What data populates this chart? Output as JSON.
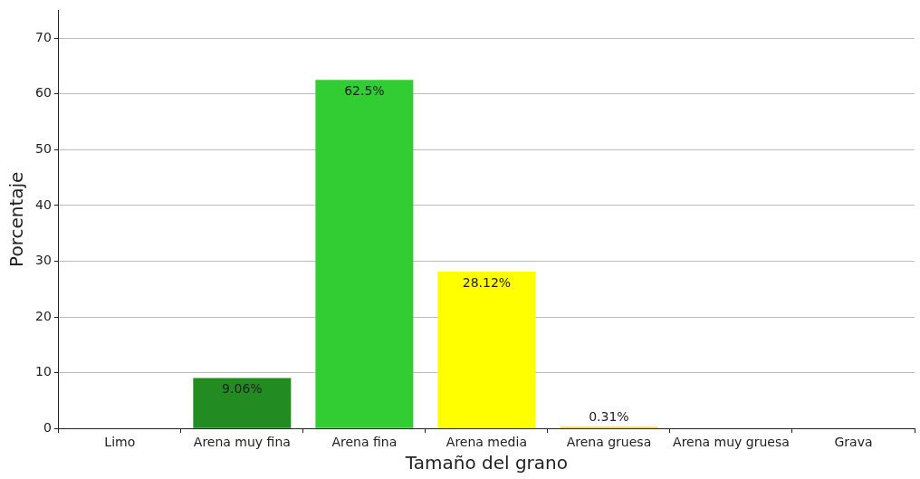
{
  "chart_data": {
    "type": "bar",
    "xlabel": "Tamaño del grano",
    "ylabel": "Porcentaje",
    "categories": [
      "Limo",
      "Arena muy fina",
      "Arena fina",
      "Arena media",
      "Arena gruesa",
      "Arena muy gruesa",
      "Grava"
    ],
    "values": [
      0,
      9.06,
      62.5,
      28.12,
      0.31,
      0,
      0
    ],
    "colors": [
      "#8b4513",
      "#228b22",
      "#32cd32",
      "#ffff00",
      "#ffd700",
      "#ffa500",
      "#808080"
    ],
    "value_labels": [
      null,
      "9.06%",
      "62.5%",
      "28.12%",
      "0.31%",
      null,
      null
    ],
    "ylim": [
      0,
      75
    ],
    "yticks": [
      0,
      10,
      20,
      30,
      40,
      50,
      60,
      70
    ],
    "grid": "y",
    "legend": false
  }
}
